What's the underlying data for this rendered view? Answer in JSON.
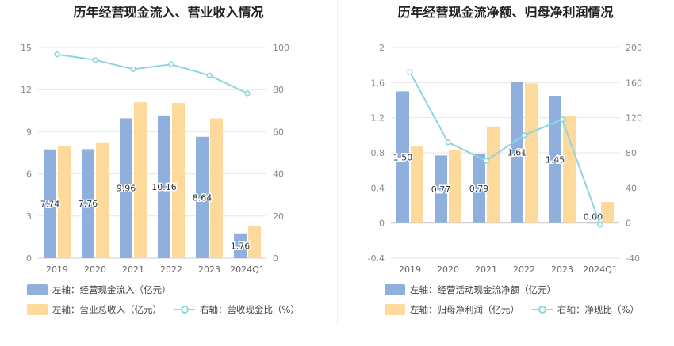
{
  "chart_data": [
    {
      "type": "bar",
      "title": "历年经营现金流入、营业收入情况",
      "categories": [
        "2019",
        "2020",
        "2021",
        "2022",
        "2023",
        "2024Q1"
      ],
      "left_axis": {
        "min": 0,
        "max": 15,
        "ticks": [
          "0",
          "3",
          "6",
          "9",
          "12",
          "15"
        ]
      },
      "right_axis": {
        "min": 0,
        "max": 100,
        "ticks": [
          "0",
          "20",
          "40",
          "60",
          "80",
          "100"
        ]
      },
      "series": [
        {
          "name": "左轴：经营现金流入（亿元）",
          "kind": "bar",
          "axis": "left",
          "color": "#8fb0dc",
          "values": [
            7.74,
            7.76,
            9.96,
            10.16,
            8.64,
            1.76
          ],
          "labels": [
            "7.74",
            "7.76",
            "9.96",
            "10.16",
            "8.64",
            "1.76"
          ]
        },
        {
          "name": "左轴：营业总收入（亿元）",
          "kind": "bar",
          "axis": "left",
          "color": "#fdd99b",
          "values": [
            8.0,
            8.25,
            11.1,
            11.05,
            9.95,
            2.25
          ]
        },
        {
          "name": "右轴：营收现金比（%）",
          "kind": "line",
          "axis": "right",
          "color": "#8dd6dc",
          "values": [
            96.7,
            94.1,
            89.7,
            92.0,
            86.8,
            78.2
          ]
        }
      ]
    },
    {
      "type": "bar",
      "title": "历年经营现金流净额、归母净利润情况",
      "categories": [
        "2019",
        "2020",
        "2021",
        "2022",
        "2023",
        "2024Q1"
      ],
      "left_axis": {
        "min": -0.4,
        "max": 2,
        "ticks": [
          "-0.4",
          "0",
          "0.4",
          "0.8",
          "1.2",
          "1.6",
          "2"
        ]
      },
      "right_axis": {
        "min": -40,
        "max": 200,
        "ticks": [
          "-40",
          "0",
          "40",
          "80",
          "120",
          "160",
          "200"
        ]
      },
      "series": [
        {
          "name": "左轴：经营活动现金流净额（亿元）",
          "kind": "bar",
          "axis": "left",
          "color": "#8fb0dc",
          "values": [
            1.5,
            0.77,
            0.79,
            1.61,
            1.45,
            0.0
          ],
          "labels": [
            "1.50",
            "0.77",
            "0.79",
            "1.61",
            "1.45",
            "0.00"
          ]
        },
        {
          "name": "左轴：归母净利润（亿元）",
          "kind": "bar",
          "axis": "left",
          "color": "#fdd99b",
          "values": [
            0.87,
            0.83,
            1.1,
            1.59,
            1.22,
            0.24
          ]
        },
        {
          "name": "右轴：净现比（%）",
          "kind": "line",
          "axis": "right",
          "color": "#8dd6dc",
          "values": [
            172,
            92,
            71,
            100,
            118,
            -2
          ]
        }
      ]
    }
  ]
}
